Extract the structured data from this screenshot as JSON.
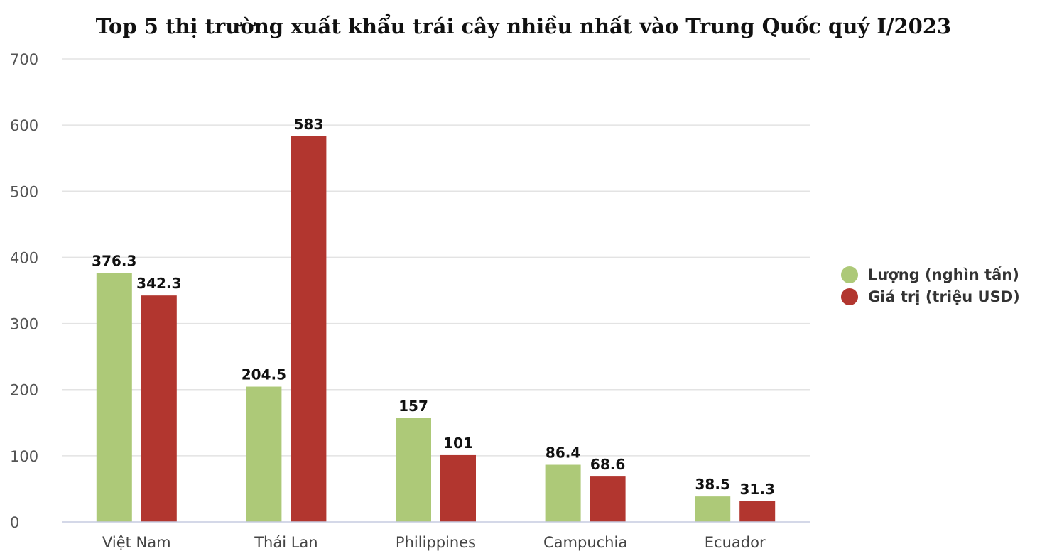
{
  "chart_data": {
    "type": "bar",
    "title": "Top 5 thị trường xuất khẩu trái cây nhiều nhất vào Trung Quốc quý I/2023",
    "xlabel": "",
    "ylabel": "",
    "categories": [
      "Việt Nam",
      "Thái Lan",
      "Philippines",
      "Campuchia",
      "Ecuador"
    ],
    "series": [
      {
        "name": "Lượng (nghìn tấn)",
        "color": "#adc978",
        "values": [
          376.3,
          204.5,
          157,
          86.4,
          38.5
        ],
        "labels": [
          "376.3",
          "204.5",
          "157",
          "86.4",
          "38.5"
        ]
      },
      {
        "name": "Giá trị (triệu USD)",
        "color": "#b2362f",
        "values": [
          342.3,
          583,
          101,
          68.6,
          31.3
        ],
        "labels": [
          "342.3",
          "583",
          "101",
          "68.6",
          "31.3"
        ]
      }
    ],
    "ylim": [
      0,
      700
    ],
    "yticks": [
      "0",
      "100",
      "200",
      "300",
      "400",
      "500",
      "600",
      "700"
    ],
    "grid": true,
    "legend_position": "right"
  }
}
